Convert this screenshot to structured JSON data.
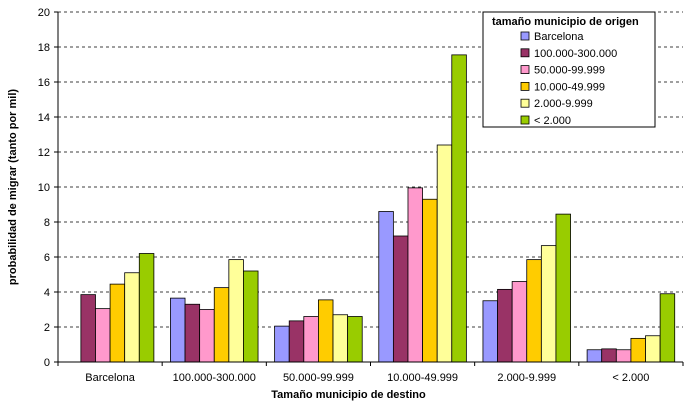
{
  "chart_data": {
    "type": "bar",
    "title": "",
    "xlabel": "Tamaño municipio de destino",
    "ylabel": "probabilidad de migrar (tanto por mil)",
    "ylim": [
      0,
      20
    ],
    "yticks": [
      0,
      2,
      4,
      6,
      8,
      10,
      12,
      14,
      16,
      18,
      20
    ],
    "grid": "horizontal dashed",
    "legend_position": "top-right",
    "legend_title": "tamaño municipio de origen",
    "categories": [
      "Barcelona",
      "100.000-300.000",
      "50.000-99.999",
      "10.000-49.999",
      "2.000-9.999",
      "< 2.000"
    ],
    "series": [
      {
        "name": "Barcelona",
        "color": "#9999ff",
        "values": [
          null,
          3.65,
          2.05,
          8.6,
          3.5,
          0.7
        ]
      },
      {
        "name": "100.000-300.000",
        "color": "#993366",
        "values": [
          3.85,
          3.3,
          2.35,
          7.2,
          4.15,
          0.75
        ]
      },
      {
        "name": "50.000-99.999",
        "color": "#ff99cc",
        "values": [
          3.05,
          3.0,
          2.6,
          9.95,
          4.6,
          0.7
        ]
      },
      {
        "name": "10.000-49.999",
        "color": "#ffcc00",
        "values": [
          4.45,
          4.25,
          3.55,
          9.3,
          5.85,
          1.35
        ]
      },
      {
        "name": "2.000-9.999",
        "color": "#ffff99",
        "values": [
          5.1,
          5.85,
          2.7,
          12.4,
          6.65,
          1.5
        ]
      },
      {
        "name": "< 2.000",
        "color": "#99cc00",
        "values": [
          6.2,
          5.2,
          2.6,
          17.55,
          8.45,
          3.9
        ]
      }
    ]
  }
}
